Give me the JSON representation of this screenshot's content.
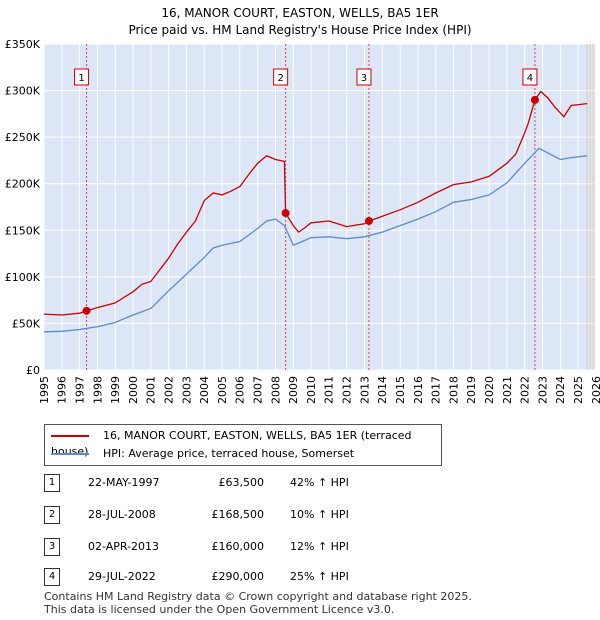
{
  "title_line1": "16, MANOR COURT, EASTON, WELLS, BA5 1ER",
  "title_line2": "Price paid vs. HM Land Registry's House Price Index (HPI)",
  "legend": {
    "property_label": "16, MANOR COURT, EASTON, WELLS, BA5 1ER (terraced house)",
    "hpi_label": "HPI: Average price, terraced house, Somerset"
  },
  "sales": [
    {
      "num": "1",
      "date": "22-MAY-1997",
      "price": "£63,500",
      "hpi": "42% ↑ HPI"
    },
    {
      "num": "2",
      "date": "28-JUL-2008",
      "price": "£168,500",
      "hpi": "10% ↑ HPI"
    },
    {
      "num": "3",
      "date": "02-APR-2013",
      "price": "£160,000",
      "hpi": "12% ↑ HPI"
    },
    {
      "num": "4",
      "date": "29-JUL-2022",
      "price": "£290,000",
      "hpi": "25% ↑ HPI"
    }
  ],
  "footer_line1": "Contains HM Land Registry data © Crown copyright and database right 2025.",
  "footer_line2": "This data is licensed under the Open Government Licence v3.0.",
  "colors": {
    "property": "#cc0000",
    "hpi": "#5b8cc8",
    "shade": "#dce6f6",
    "grid": "#ffffff"
  },
  "chart_data": {
    "type": "line",
    "title": "16, MANOR COURT, EASTON, WELLS, BA5 1ER",
    "subtitle": "Price paid vs. HM Land Registry's House Price Index (HPI)",
    "xlim": [
      1995,
      2026
    ],
    "ylim": [
      0,
      350000
    ],
    "x_ticks": [
      1995,
      1996,
      1997,
      1998,
      1999,
      2000,
      2001,
      2002,
      2003,
      2004,
      2005,
      2006,
      2007,
      2008,
      2009,
      2010,
      2011,
      2012,
      2013,
      2014,
      2015,
      2016,
      2017,
      2018,
      2019,
      2020,
      2021,
      2022,
      2023,
      2024,
      2025,
      2026
    ],
    "y_ticks": [
      0,
      50000,
      100000,
      150000,
      200000,
      250000,
      300000,
      350000
    ],
    "y_tick_labels": [
      "£0",
      "£50K",
      "£100K",
      "£150K",
      "£200K",
      "£250K",
      "£300K",
      "£350K"
    ],
    "future_from": 2025.5,
    "series": [
      {
        "name": "16, MANOR COURT, EASTON, WELLS, BA5 1ER (terraced house)",
        "color": "#cc0000",
        "points": [
          [
            1995,
            60000
          ],
          [
            1996,
            59000
          ],
          [
            1997.0,
            61000
          ],
          [
            1997.39,
            63500
          ],
          [
            1998,
            67000
          ],
          [
            1999,
            72000
          ],
          [
            2000,
            84000
          ],
          [
            2000.5,
            92000
          ],
          [
            2001,
            95000
          ],
          [
            2002,
            120000
          ],
          [
            2002.5,
            135000
          ],
          [
            2003,
            148000
          ],
          [
            2003.5,
            160000
          ],
          [
            2004,
            182000
          ],
          [
            2004.5,
            190000
          ],
          [
            2005,
            188000
          ],
          [
            2005.5,
            192000
          ],
          [
            2006,
            197000
          ],
          [
            2006.5,
            210000
          ],
          [
            2007,
            222000
          ],
          [
            2007.5,
            230000
          ],
          [
            2008,
            226000
          ],
          [
            2008.5,
            224000
          ],
          [
            2008.57,
            168500
          ],
          [
            2009,
            155000
          ],
          [
            2009.3,
            148000
          ],
          [
            2009.6,
            152000
          ],
          [
            2010,
            158000
          ],
          [
            2011,
            160000
          ],
          [
            2012,
            154000
          ],
          [
            2013,
            157000
          ],
          [
            2013.25,
            160000
          ],
          [
            2014,
            165000
          ],
          [
            2015,
            172000
          ],
          [
            2016,
            180000
          ],
          [
            2017,
            190000
          ],
          [
            2018,
            199000
          ],
          [
            2019,
            202000
          ],
          [
            2020,
            208000
          ],
          [
            2021,
            222000
          ],
          [
            2021.5,
            232000
          ],
          [
            2022.0,
            255000
          ],
          [
            2022.2,
            265000
          ],
          [
            2022.57,
            290000
          ],
          [
            2022.9,
            299000
          ],
          [
            2023.3,
            292000
          ],
          [
            2023.7,
            282000
          ],
          [
            2024.2,
            272000
          ],
          [
            2024.6,
            284000
          ],
          [
            2025.5,
            286000
          ]
        ]
      },
      {
        "name": "HPI: Average price, terraced house, Somerset",
        "color": "#5b8cc8",
        "points": [
          [
            1995,
            41000
          ],
          [
            1996,
            41500
          ],
          [
            1997,
            43500
          ],
          [
            1998,
            46500
          ],
          [
            1999,
            51000
          ],
          [
            2000,
            59000
          ],
          [
            2001,
            66000
          ],
          [
            2002,
            85000
          ],
          [
            2003,
            103000
          ],
          [
            2004,
            121000
          ],
          [
            2004.5,
            131000
          ],
          [
            2005,
            134000
          ],
          [
            2006,
            138000
          ],
          [
            2007,
            152000
          ],
          [
            2007.5,
            160000
          ],
          [
            2008,
            162000
          ],
          [
            2008.5,
            155000
          ],
          [
            2009,
            134000
          ],
          [
            2009.5,
            138000
          ],
          [
            2010,
            142000
          ],
          [
            2011,
            143000
          ],
          [
            2012,
            141000
          ],
          [
            2013,
            143000
          ],
          [
            2014,
            148000
          ],
          [
            2015,
            155000
          ],
          [
            2016,
            162000
          ],
          [
            2017,
            170000
          ],
          [
            2018,
            180000
          ],
          [
            2019,
            183000
          ],
          [
            2020,
            188000
          ],
          [
            2021,
            201000
          ],
          [
            2022,
            222000
          ],
          [
            2022.8,
            238000
          ],
          [
            2023.4,
            232000
          ],
          [
            2024,
            226000
          ],
          [
            2024.6,
            228000
          ],
          [
            2025.5,
            230000
          ]
        ]
      }
    ],
    "sales": [
      {
        "label": "1",
        "x": 1997.39,
        "y": 63500
      },
      {
        "label": "2",
        "x": 2008.57,
        "y": 168500
      },
      {
        "label": "3",
        "x": 2013.25,
        "y": 160000
      },
      {
        "label": "4",
        "x": 2022.57,
        "y": 290000
      }
    ]
  }
}
